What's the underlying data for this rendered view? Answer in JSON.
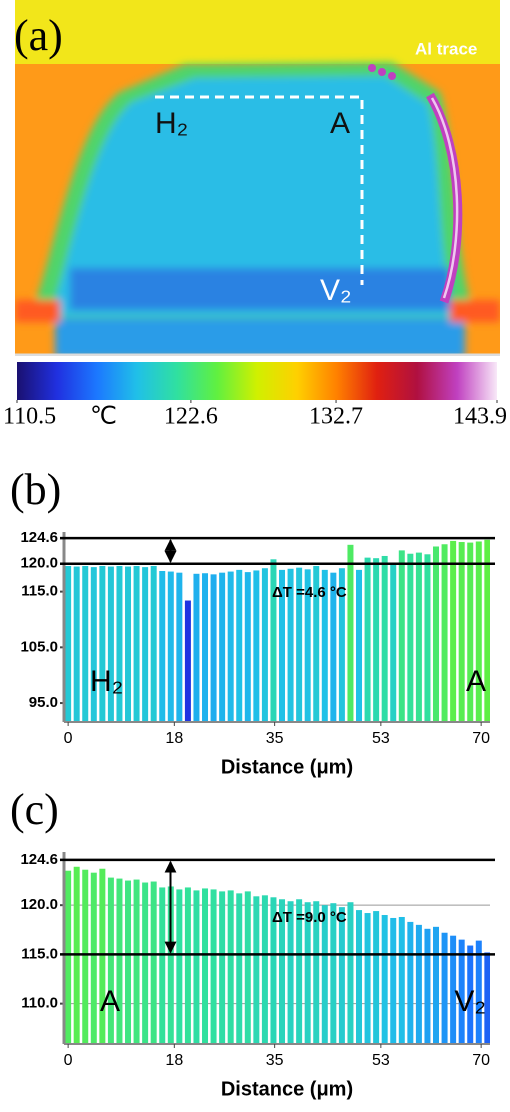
{
  "chart_data": [
    {
      "type": "thermal-image",
      "label": "(a)",
      "annotations": [
        "Al trace",
        "H₂",
        "A",
        "V₂"
      ],
      "clim": [
        110.5,
        143.9
      ],
      "cticks": [
        110.5,
        122.6,
        132.7,
        143.9
      ],
      "unit": "℃",
      "colormap": [
        "#1a1070",
        "#2030e0",
        "#1c78ff",
        "#20c0e8",
        "#30e0a0",
        "#60f040",
        "#d0f000",
        "#ffd000",
        "#ff8000",
        "#e02010",
        "#b01040",
        "#c040c0",
        "#f8e8f8"
      ]
    },
    {
      "type": "bar",
      "label": "(b)",
      "xlabel": "Distance (μm)",
      "x": [
        0,
        1.45,
        2.9,
        4.35,
        5.8,
        7.25,
        8.7,
        10.15,
        11.6,
        13.05,
        14.5,
        15.95,
        17.4,
        18.85,
        20.3,
        21.75,
        23.2,
        24.65,
        26.1,
        27.55,
        29,
        30.45,
        31.9,
        33.35,
        34.8,
        36.25,
        37.7,
        39.15,
        40.6,
        42.05,
        43.5,
        44.95,
        46.4,
        47.85,
        49.3,
        50.75,
        52.2,
        53.65,
        55.1,
        56.55,
        58,
        59.45,
        60.9,
        62.35,
        63.8,
        65.25,
        66.7,
        68.15,
        69.6,
        71.05
      ],
      "values": [
        119.6,
        119.5,
        119.6,
        119.4,
        119.6,
        119.5,
        119.6,
        119.5,
        119.6,
        119.4,
        119.6,
        118.7,
        118.6,
        118.4,
        113.4,
        118.2,
        118.3,
        118.1,
        118.4,
        118.6,
        118.9,
        118.5,
        118.8,
        119.2,
        120.8,
        118.9,
        119.1,
        119.3,
        119.0,
        119.6,
        118.9,
        118.4,
        119.2,
        123.4,
        118.9,
        121.1,
        121.0,
        121.4,
        120.2,
        122.4,
        121.8,
        122.0,
        121.7,
        123.1,
        123.5,
        124.1,
        123.9,
        123.8,
        124.0,
        124.3
      ],
      "xlim": [
        -0.7,
        71.5
      ],
      "xticks": [
        0,
        18,
        35,
        53,
        70
      ],
      "ylim": [
        91.6,
        125.7
      ],
      "yticks": [
        {
          "value": 95,
          "label": "95.0"
        },
        {
          "value": 105,
          "label": "105.0"
        },
        {
          "value": 115,
          "label": "115.0"
        },
        {
          "value": 120,
          "label": "120.0"
        },
        124.6
      ],
      "grid": false,
      "ref_lines": [
        124.6,
        120
      ],
      "annotation": "ΔT =4.6 °C",
      "corner_labels": [
        "H₂",
        "A"
      ]
    },
    {
      "type": "bar",
      "label": "(c)",
      "xlabel": "Distance (μm)",
      "x": [
        0,
        1.45,
        2.9,
        4.35,
        5.8,
        7.25,
        8.7,
        10.15,
        11.6,
        13.05,
        14.5,
        15.95,
        17.4,
        18.85,
        20.3,
        21.75,
        23.2,
        24.65,
        26.1,
        27.55,
        29,
        30.45,
        31.9,
        33.35,
        34.8,
        36.25,
        37.7,
        39.15,
        40.6,
        42.05,
        43.5,
        44.95,
        46.4,
        47.85,
        49.3,
        50.75,
        52.2,
        53.65,
        55.1,
        56.55,
        58,
        59.45,
        60.9,
        62.35,
        63.8,
        65.25,
        66.7,
        68.15,
        69.6,
        71.05
      ],
      "values": [
        123.5,
        123.9,
        123.6,
        123.3,
        123.7,
        122.8,
        122.7,
        122.5,
        122.6,
        122.3,
        122.4,
        121.8,
        121.9,
        121.6,
        121.8,
        121.5,
        121.7,
        121.6,
        121.4,
        121.5,
        121.2,
        121.4,
        120.9,
        121.0,
        120.8,
        120.6,
        120.4,
        120.6,
        120.3,
        120.4,
        120.0,
        120.2,
        119.8,
        120.3,
        119.5,
        119.2,
        119.4,
        119.0,
        118.7,
        118.8,
        118.3,
        118.0,
        117.6,
        117.8,
        117.2,
        116.9,
        116.5,
        115.9,
        116.4,
        115.2
      ],
      "xlim": [
        -0.7,
        71.5
      ],
      "xticks": [
        0,
        18,
        35,
        53,
        70
      ],
      "ylim": [
        105.9,
        125.4
      ],
      "yticks": [
        {
          "value": 110,
          "label": "110.0"
        },
        {
          "value": 115,
          "label": "115.0"
        },
        {
          "value": 120,
          "label": "120.0"
        },
        124.6
      ],
      "grid": true,
      "ref_lines": [
        124.6,
        115
      ],
      "annotation": "ΔT =9.0 °C",
      "corner_labels": [
        "A",
        "V₂"
      ]
    }
  ]
}
